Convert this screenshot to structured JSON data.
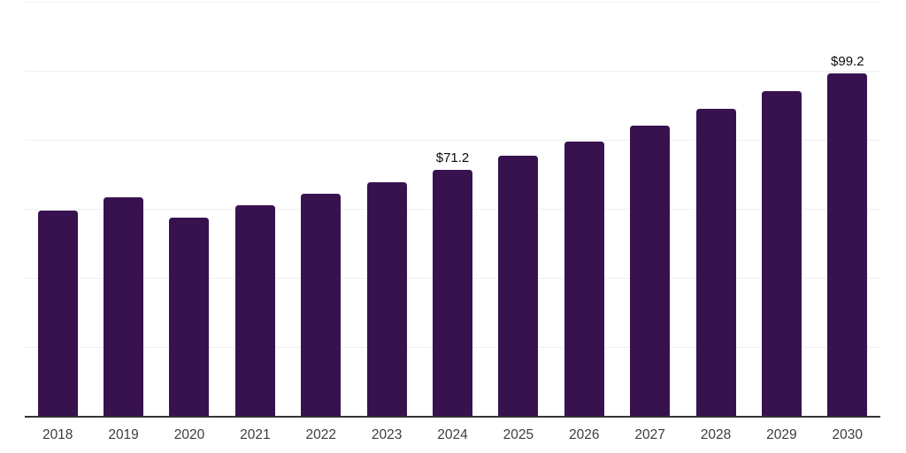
{
  "chart_data": {
    "type": "bar",
    "title": "",
    "xlabel": "",
    "ylabel": "",
    "categories": [
      "2018",
      "2019",
      "2020",
      "2021",
      "2022",
      "2023",
      "2024",
      "2025",
      "2026",
      "2027",
      "2028",
      "2029",
      "2030"
    ],
    "values": [
      59.4,
      63.3,
      57.4,
      61.0,
      64.2,
      67.6,
      71.2,
      75.2,
      79.5,
      84.0,
      88.8,
      93.9,
      99.2
    ],
    "value_labels": {
      "2024": "$71.2",
      "2030": "$99.2"
    },
    "ylim": [
      0,
      120
    ],
    "grid": true,
    "gridline_step": 20,
    "y_axis_labels_visible": false,
    "legend": false,
    "colors": {
      "bar": "#38124F",
      "gridline": "#EFEFEF",
      "axis": "#333333",
      "tick_label": "#3D3D3D",
      "value_label": "#0A0A0A",
      "background": "#FFFFFF"
    }
  }
}
